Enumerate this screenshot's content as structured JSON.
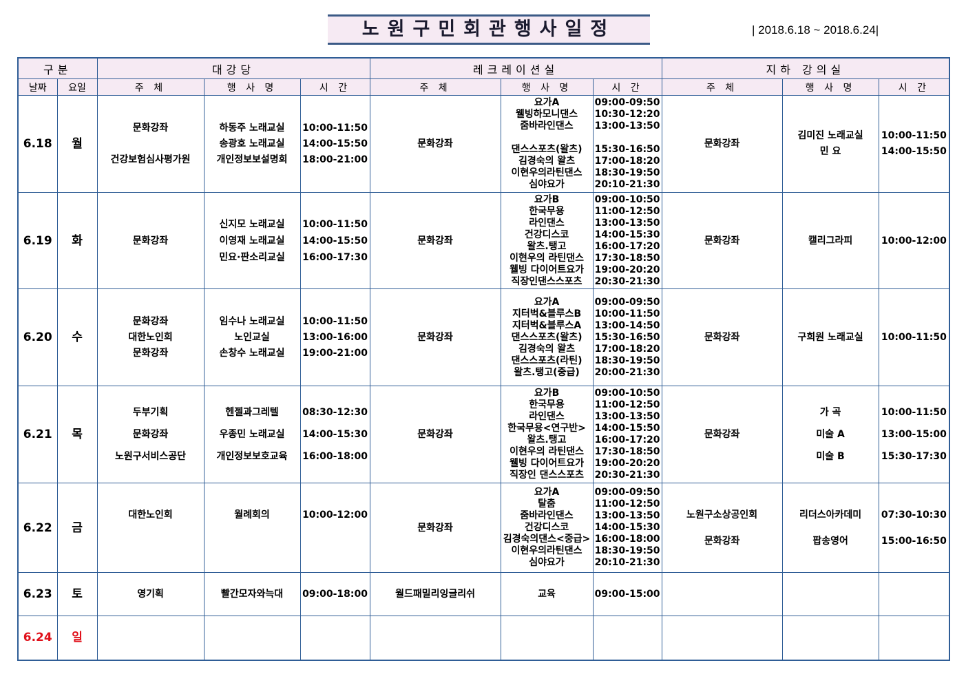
{
  "title": "노원구민회관행사일정",
  "period": "| 2018.6.18 ~ 2018.6.24|",
  "header": {
    "group": "구분",
    "hall": "대강당",
    "rec": "레크레이션실",
    "base": "지하 강의실",
    "date": "날짜",
    "day": "요일",
    "host": "주 체",
    "event": "행 사 명",
    "time": "시 간"
  },
  "colors": {
    "border": "#2f5d96",
    "header_bg": "#f6eaf3",
    "sunday": "#e0101a"
  },
  "rows": [
    {
      "date": "6.18",
      "day": "월",
      "h": 141,
      "lh": 23,
      "hall": {
        "host": "문화강좌\n\n건강보험심사평가원",
        "event": "하동주 노래교실\n송광호 노래교실\n개인정보보설명회",
        "time": "10:00-11:50\n14:00-15:50\n18:00-21:00"
      },
      "rec": {
        "host": "문화강좌",
        "event": "요가A\n웰빙하모니댄스\n줌바라인댄스\n\n댄스스포츠(왈츠)\n김경숙의 왈츠\n이현우의라틴댄스\n심야요가",
        "time": "09:00-09:50\n10:30-12:20\n13:00-13:50\n\n15:30-16:50\n17:00-18:20\n18:30-19:50\n20:10-21:30"
      },
      "base": {
        "host": "문화강좌",
        "event": "김미진 노래교실\n민  요",
        "time": "10:00-11:50\n14:00-15:50"
      }
    },
    {
      "date": "6.19",
      "day": "화",
      "h": 140,
      "lh": 24,
      "hall": {
        "host": "문화강좌",
        "event": "신지모 노래교실\n이영재 노래교실\n민요·판소리교실",
        "time": "10:00-11:50\n14:00-15:50\n16:00-17:30"
      },
      "rec": {
        "host": "문화강좌",
        "event": "요가B\n한국무용\n라인댄스\n건강디스코\n왈츠.탱고\n이현우의 라틴댄스\n웰빙 다이어트요가\n직장인댄스스포츠",
        "time": "09:00-10:50\n11:00-12:50\n13:00-13:50\n14:00-15:30\n16:00-17:20\n17:30-18:50\n19:00-20:20\n20:30-21:30"
      },
      "base": {
        "host": "문화강좌",
        "event": "캘리그라피",
        "time": "10:00-12:00"
      }
    },
    {
      "date": "6.20",
      "day": "수",
      "h": 141,
      "lh": 23,
      "hall": {
        "host": "문화강좌\n대한노인회\n문화강좌",
        "event": "임수나 노래교실\n노인교실\n손창수 노래교실",
        "time": "10:00-11:50\n13:00-16:00\n19:00-21:00"
      },
      "rec": {
        "host": "문화강좌",
        "event": "요가A\n지터벅&블루스B\n지터벅&블루스A\n댄스스포츠(왈츠)\n김경숙의 왈츠\n댄스스포츠(라틴)\n왈츠.탱고(중급)",
        "time": "09:00-09:50\n10:00-11:50\n13:00-14:50\n15:30-16:50\n17:00-18:20\n18:30-19:50\n20:00-21:30"
      },
      "base": {
        "host": "문화강좌",
        "event": "구희원 노래교실",
        "time": "10:00-11:50"
      }
    },
    {
      "date": "6.21",
      "day": "목",
      "h": 141,
      "lh": 32,
      "hall": {
        "host": "두부기획\n문화강좌\n노원구서비스공단",
        "event": "헨젤과그레텔\n우종민 노래교실\n개인정보보호교육",
        "time": "08:30-12:30\n14:00-15:30\n16:00-18:00"
      },
      "rec": {
        "host": "문화강좌",
        "event": "요가B\n한국무용\n라인댄스\n한국무용<연구반>\n왈츠.탱고\n이현우의 라틴댄스\n웰빙 다이어트요가\n직장인 댄스스포츠",
        "time": "09:00-10:50\n11:00-12:50\n13:00-13:50\n14:00-15:50\n16:00-17:20\n17:30-18:50\n19:00-20:20\n20:30-21:30"
      },
      "base": {
        "host": "문화강좌",
        "event": "가    곡\n미술  A\n미술  B",
        "time": "10:00-11:50\n13:00-15:00\n15:30-17:30"
      }
    },
    {
      "date": "6.22",
      "day": "금",
      "h": 130,
      "lh": 38,
      "hall": {
        "host": "대한노인회\n\n",
        "event": "월례회의\n\n",
        "time": "10:00-12:00\n\n"
      },
      "rec": {
        "host": "문화강좌",
        "event": "요가A\n탈춤\n줌바라인댄스\n건강디스코\n김경숙의댄스<중급>\n이현우의라틴댄스\n심야요가",
        "time": "09:00-09:50\n11:00-12:50\n13:00-13:50\n14:00-15:30\n16:00-18:00\n18:30-19:50\n20:10-21:30"
      },
      "base": {
        "host": "노원구소상공인회\n문화강좌",
        "event": "리더스아카데미\n팝송영어",
        "time": "07:30-10:30\n15:00-16:50"
      }
    },
    {
      "date": "6.23",
      "day": "토",
      "h": 63,
      "lh": 20,
      "hall": {
        "host": "영기획",
        "event": "빨간모자와늑대",
        "time": "09:00-18:00"
      },
      "rec": {
        "host": "월드패밀리잉글리쉬",
        "event": "교육",
        "time": "09:00-15:00"
      },
      "base": {
        "host": "",
        "event": "",
        "time": ""
      }
    },
    {
      "date": "6.24",
      "day": "일",
      "h": 64,
      "lh": 20,
      "sunday": true,
      "hall": {
        "host": "",
        "event": "",
        "time": ""
      },
      "rec": {
        "host": "",
        "event": "",
        "time": ""
      },
      "base": {
        "host": "",
        "event": "",
        "time": ""
      }
    }
  ]
}
